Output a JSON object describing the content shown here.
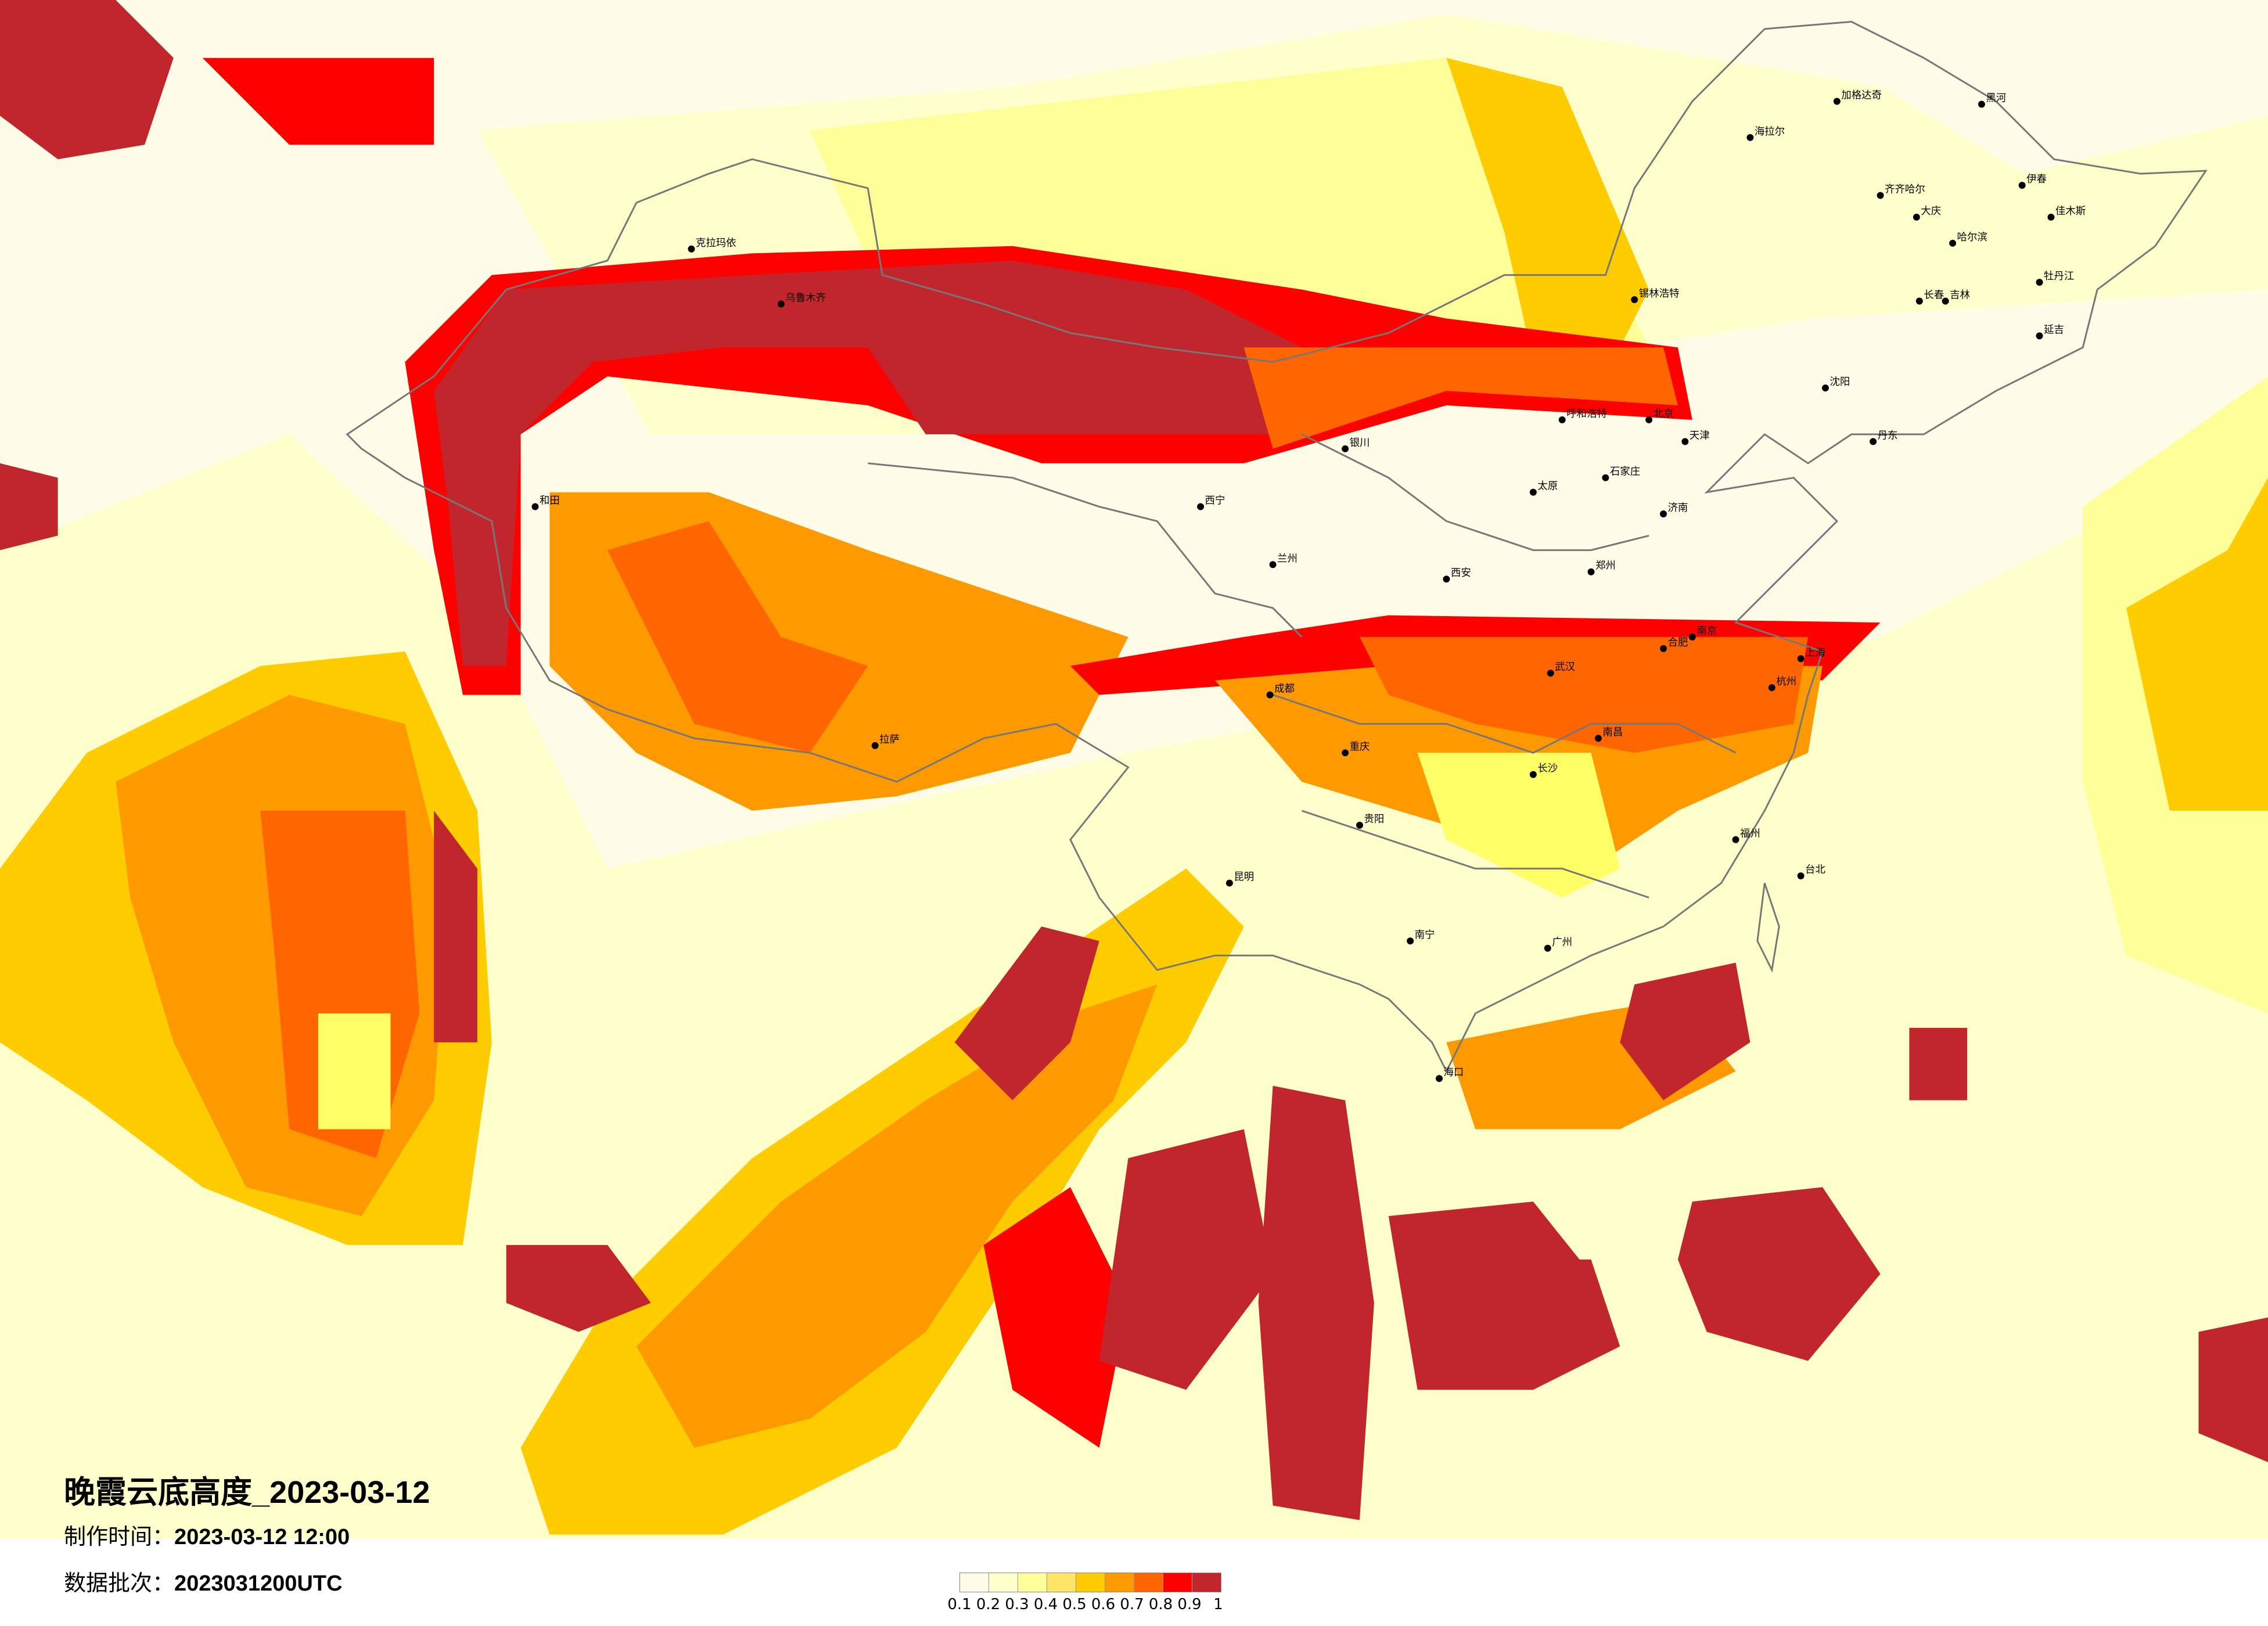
{
  "title": {
    "name": "晚霞云底高度",
    "date": "_2023-03-12"
  },
  "production_time": {
    "label": "制作时间：",
    "value": "2023-03-12 12:00"
  },
  "data_batch": {
    "label": "数据批次：",
    "value": "2023031200UTC"
  },
  "legend": {
    "labels": [
      "0.1",
      "0.2",
      "0.3",
      "0.4",
      "0.5",
      "0.6",
      "0.7",
      "0.8",
      "0.9",
      "1"
    ],
    "colors": [
      "#fffde8",
      "#ffffcc",
      "#ffff99",
      "#ffe566",
      "#ffcc00",
      "#ff9900",
      "#ff6600",
      "#ff0000",
      "#c0262c"
    ]
  },
  "cities": [
    "乌鲁木齐",
    "克拉玛依",
    "和田",
    "拉萨",
    "西宁",
    "兰州",
    "银川",
    "呼和浩特",
    "锡林浩特",
    "海拉尔",
    "加格达奇",
    "黑河",
    "齐齐哈尔",
    "大庆",
    "哈尔滨",
    "伊春",
    "佳木斯",
    "牡丹江",
    "长春",
    "吉林",
    "延吉",
    "沈阳",
    "丹东",
    "北京",
    "天津",
    "石家庄",
    "太原",
    "济南",
    "郑州",
    "西安",
    "成都",
    "重庆",
    "武汉",
    "南京",
    "合肥",
    "上海",
    "杭州",
    "长沙",
    "南昌",
    "贵阳",
    "昆明",
    "南宁",
    "广州",
    "福州",
    "台北",
    "海口"
  ]
}
